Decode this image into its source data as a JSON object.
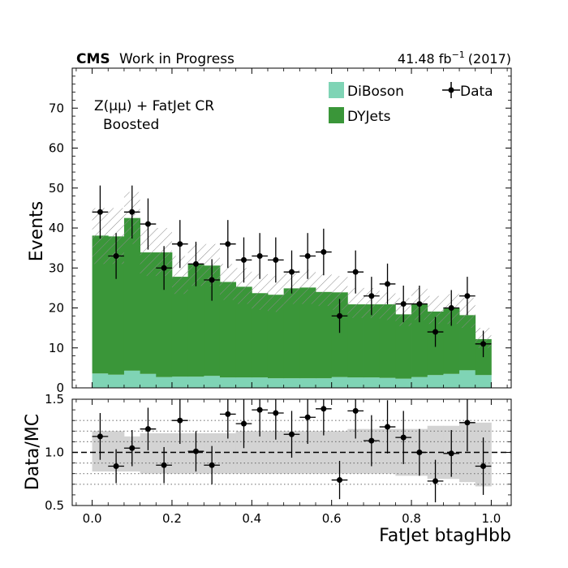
{
  "header": {
    "cms": "CMS",
    "work": "Work in Progress",
    "lumi_value": "41.48 fb",
    "lumi_exp": "−1",
    "lumi_year": "(2017)"
  },
  "region": {
    "line1": "Z(μμ) + FatJet CR",
    "line2": "Boosted"
  },
  "legend": {
    "diboson": "DiBoson",
    "dyjets": "DYJets",
    "data": "Data"
  },
  "colors": {
    "diboson": "#7fd4b5",
    "dyjets": "#3a9639",
    "data": "#000000",
    "ratio_band": "#d3d3d3",
    "hatch": "#8a8a8a"
  },
  "chart_data": [
    {
      "type": "bar",
      "stacked": true,
      "xlabel": "",
      "ylabel": "Events",
      "xlim": [
        -0.05,
        1.05
      ],
      "ylim": [
        0,
        80
      ],
      "yticks": [
        0,
        10,
        20,
        30,
        40,
        50,
        60,
        70
      ],
      "xticks": [
        0.0,
        0.2,
        0.4,
        0.6,
        0.8,
        1.0
      ],
      "bin_edges": [
        0.0,
        0.04,
        0.08,
        0.12,
        0.16,
        0.2,
        0.24,
        0.28,
        0.32,
        0.36,
        0.4,
        0.44,
        0.48,
        0.52,
        0.56,
        0.6,
        0.64,
        0.68,
        0.72,
        0.76,
        0.8,
        0.84,
        0.88,
        0.92,
        0.96,
        1.0
      ],
      "series": [
        {
          "name": "DiBoson",
          "values": [
            3.6,
            3.3,
            4.3,
            3.5,
            2.7,
            2.8,
            2.8,
            3.0,
            2.6,
            2.6,
            2.6,
            2.4,
            2.4,
            2.4,
            2.4,
            2.7,
            2.6,
            2.6,
            2.5,
            2.3,
            2.7,
            3.2,
            3.5,
            4.4,
            3.2
          ]
        },
        {
          "name": "DYJets",
          "values": [
            34.5,
            34.6,
            38.2,
            30.4,
            31.2,
            25.0,
            28.2,
            27.6,
            23.9,
            22.7,
            21.1,
            20.9,
            22.5,
            22.7,
            21.6,
            21.2,
            18.3,
            18.3,
            18.4,
            16.1,
            18.3,
            15.9,
            16.5,
            13.8,
            9.0
          ]
        }
      ],
      "uncertainty_hatch": [
        [
          31.0,
          45.0
        ],
        [
          31.0,
          45.0
        ],
        [
          36.0,
          49.0
        ],
        [
          28.0,
          40.0
        ],
        [
          28.0,
          40.0
        ],
        [
          23.5,
          33.0
        ],
        [
          25.5,
          36.0
        ],
        [
          25.5,
          36.0
        ],
        [
          22.0,
          31.0
        ],
        [
          21.0,
          30.0
        ],
        [
          19.5,
          28.5
        ],
        [
          19.0,
          28.0
        ],
        [
          21.0,
          29.5
        ],
        [
          21.0,
          29.5
        ],
        [
          20.5,
          28.5
        ],
        [
          19.5,
          28.0
        ],
        [
          17.5,
          25.0
        ],
        [
          17.5,
          25.0
        ],
        [
          17.0,
          24.0
        ],
        [
          15.5,
          22.5
        ],
        [
          17.0,
          25.0
        ],
        [
          16.0,
          23.0
        ],
        [
          16.0,
          23.5
        ],
        [
          15.0,
          22.5
        ],
        [
          10.0,
          15.0
        ]
      ],
      "data_points": {
        "name": "Data",
        "x": [
          0.02,
          0.06,
          0.1,
          0.14,
          0.18,
          0.22,
          0.26,
          0.3,
          0.34,
          0.38,
          0.42,
          0.46,
          0.5,
          0.54,
          0.58,
          0.62,
          0.66,
          0.7,
          0.74,
          0.78,
          0.82,
          0.86,
          0.9,
          0.94,
          0.98
        ],
        "y": [
          44,
          33,
          44,
          41,
          30,
          36,
          31,
          27,
          36,
          32,
          33,
          32,
          29,
          33,
          34,
          18,
          29,
          23,
          26,
          21,
          21,
          14,
          20,
          23,
          11
        ]
      }
    },
    {
      "type": "scatter",
      "xlabel": "FatJet btagHbb",
      "ylabel": "Data/MC",
      "xlim": [
        -0.05,
        1.05
      ],
      "ylim": [
        0.5,
        1.5
      ],
      "yticks": [
        0.5,
        1.0,
        1.5
      ],
      "ytick_labels": [
        "0.5",
        "1.0",
        "1.5"
      ],
      "xticks": [
        0.0,
        0.2,
        0.4,
        0.6,
        0.8,
        1.0
      ],
      "xtick_labels": [
        "0.0",
        "0.2",
        "0.4",
        "0.6",
        "0.8",
        "1.0"
      ],
      "dotted_lines": [
        0.7,
        0.8,
        0.9,
        1.1,
        1.2,
        1.3
      ],
      "reference_line": 1.0,
      "band": [
        [
          0.82,
          1.2
        ],
        [
          0.82,
          1.2
        ],
        [
          0.82,
          1.15
        ],
        [
          0.8,
          1.18
        ],
        [
          0.8,
          1.18
        ],
        [
          0.8,
          1.18
        ],
        [
          0.8,
          1.18
        ],
        [
          0.8,
          1.18
        ],
        [
          0.8,
          1.18
        ],
        [
          0.8,
          1.2
        ],
        [
          0.8,
          1.2
        ],
        [
          0.8,
          1.2
        ],
        [
          0.8,
          1.2
        ],
        [
          0.8,
          1.2
        ],
        [
          0.8,
          1.2
        ],
        [
          0.8,
          1.2
        ],
        [
          0.8,
          1.22
        ],
        [
          0.8,
          1.22
        ],
        [
          0.8,
          1.22
        ],
        [
          0.78,
          1.22
        ],
        [
          0.78,
          1.22
        ],
        [
          0.75,
          1.25
        ],
        [
          0.75,
          1.25
        ],
        [
          0.72,
          1.28
        ],
        [
          0.68,
          1.28
        ]
      ],
      "x": [
        0.02,
        0.06,
        0.1,
        0.14,
        0.18,
        0.22,
        0.26,
        0.3,
        0.34,
        0.38,
        0.42,
        0.46,
        0.5,
        0.54,
        0.58,
        0.62,
        0.66,
        0.7,
        0.74,
        0.78,
        0.82,
        0.86,
        0.9,
        0.94,
        0.98
      ],
      "y": [
        1.15,
        0.87,
        1.04,
        1.22,
        0.88,
        1.3,
        1.01,
        0.88,
        1.36,
        1.27,
        1.4,
        1.37,
        1.17,
        1.33,
        1.41,
        0.74,
        1.39,
        1.11,
        1.24,
        1.14,
        1.0,
        0.73,
        0.99,
        1.28,
        0.87
      ],
      "yerr": [
        0.22,
        0.16,
        0.17,
        0.2,
        0.17,
        0.22,
        0.19,
        0.18,
        0.23,
        0.23,
        0.25,
        0.25,
        0.22,
        0.25,
        0.25,
        0.18,
        0.26,
        0.24,
        0.25,
        0.25,
        0.22,
        0.2,
        0.22,
        0.27,
        0.27
      ]
    }
  ]
}
